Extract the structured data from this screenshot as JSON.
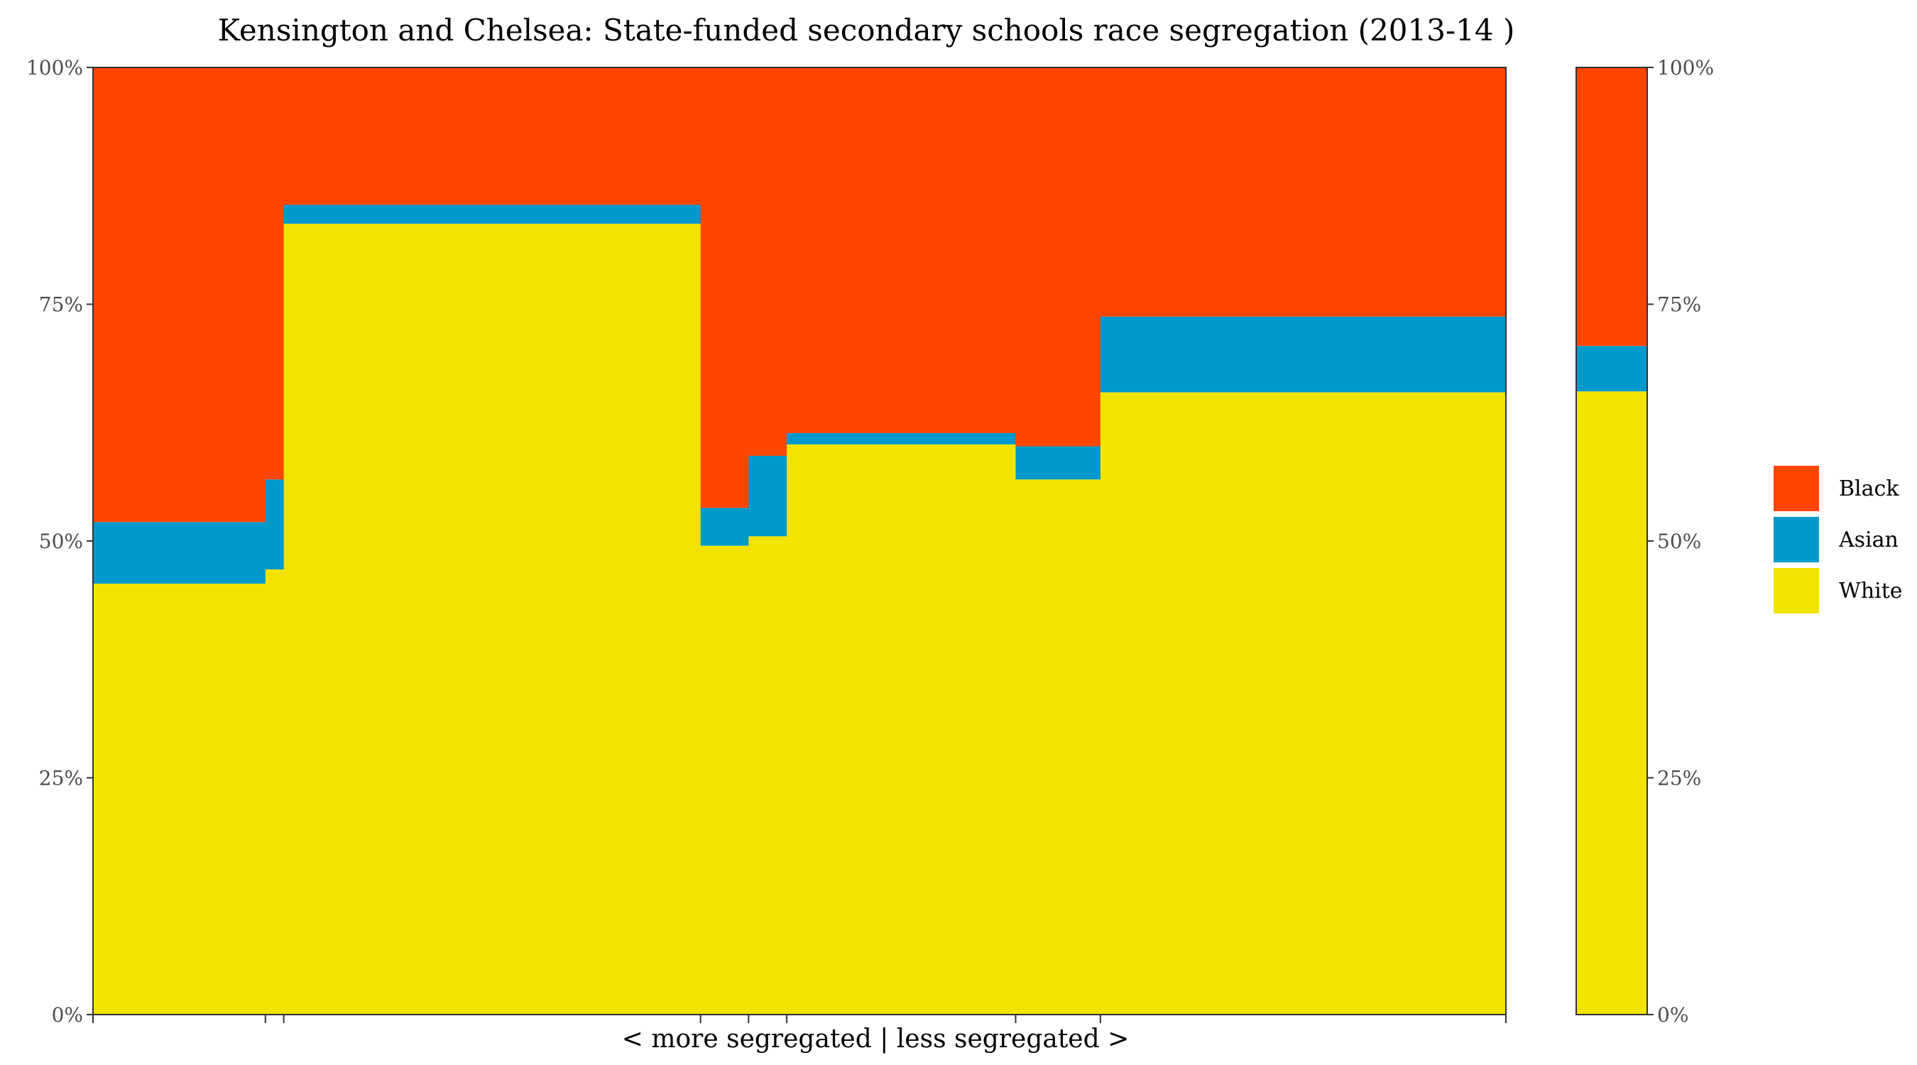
{
  "chart_data": {
    "type": "bar",
    "subtype": "variable-width stacked bar (mekko) with separate borough total panel",
    "title": "Kensington and Chelsea: State-funded secondary schools race segregation (2013-14 )",
    "xlabel": "< more segregated | less segregated >",
    "ylabel": "",
    "ylim": [
      0,
      100
    ],
    "y_ticks": [
      "0%",
      "25%",
      "50%",
      "75%",
      "100%"
    ],
    "y_tick_values": [
      0,
      25,
      50,
      75,
      100
    ],
    "stack_order_bottom_to_top": [
      "White",
      "Asian",
      "Black"
    ],
    "legend": {
      "position": "right",
      "order": [
        "Black",
        "Asian",
        "White"
      ]
    },
    "colors": {
      "White": "#f2e400",
      "Asian": "#0099cc",
      "Black": "#ff4500"
    },
    "grid": false,
    "schools": [
      {
        "cumulative_start": 0.0,
        "cumulative_end": 12.2,
        "White": 45.5,
        "Asian": 6.5,
        "Black": 48.0
      },
      {
        "cumulative_start": 12.2,
        "cumulative_end": 13.5,
        "White": 47.0,
        "Asian": 9.5,
        "Black": 43.5
      },
      {
        "cumulative_start": 13.5,
        "cumulative_end": 43.0,
        "White": 83.5,
        "Asian": 2.0,
        "Black": 14.5
      },
      {
        "cumulative_start": 43.0,
        "cumulative_end": 46.4,
        "White": 49.5,
        "Asian": 4.0,
        "Black": 46.5
      },
      {
        "cumulative_start": 46.4,
        "cumulative_end": 49.1,
        "White": 50.5,
        "Asian": 8.5,
        "Black": 41.0
      },
      {
        "cumulative_start": 49.1,
        "cumulative_end": 65.3,
        "White": 60.2,
        "Asian": 1.2,
        "Black": 38.6
      },
      {
        "cumulative_start": 65.3,
        "cumulative_end": 71.3,
        "White": 56.5,
        "Asian": 3.5,
        "Black": 40.0
      },
      {
        "cumulative_start": 71.3,
        "cumulative_end": 100.0,
        "White": 65.7,
        "Asian": 8.0,
        "Black": 26.3
      }
    ],
    "borough_total": {
      "White": 65.8,
      "Asian": 4.8,
      "Black": 29.4
    }
  }
}
